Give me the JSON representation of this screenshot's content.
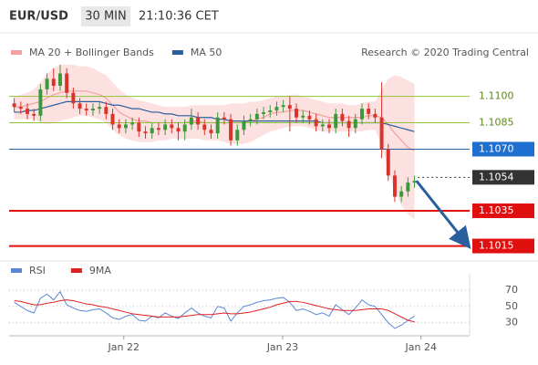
{
  "header": {
    "symbol": "EUR/USD",
    "interval": "30 MIN",
    "time": "21:10:36 CET"
  },
  "credit": "Research © 2020 Trading Central",
  "chart_data": [
    {
      "type": "candlestick",
      "legend": [
        {
          "name": "MA 20 + Bollinger Bands",
          "color": "#f4a0a0"
        },
        {
          "name": "MA 50",
          "color": "#2a5f9e"
        }
      ],
      "up_color": "#3a9a3a",
      "down_color": "#d9342b",
      "xlim": [
        0,
        69.9
      ],
      "xticks": [
        {
          "value": 17.2,
          "label": "Jan 22"
        },
        {
          "value": 41.4,
          "label": "Jan 23"
        },
        {
          "value": 62.5,
          "label": "Jan 24"
        }
      ],
      "ylim": [
        1.1007,
        1.1134
      ],
      "open": [
        1.1096,
        1.1094,
        1.1093,
        1.109,
        1.1089,
        1.1104,
        1.111,
        1.1106,
        1.1113,
        1.1102,
        1.1096,
        1.1093,
        1.1092,
        1.1093,
        1.1094,
        1.109,
        1.1084,
        1.1082,
        1.1084,
        1.1085,
        1.108,
        1.1079,
        1.1082,
        1.1081,
        1.1084,
        1.1082,
        1.108,
        1.1084,
        1.1088,
        1.1084,
        1.1081,
        1.1079,
        1.1088,
        1.1087,
        1.1075,
        1.1081,
        1.1086,
        1.1087,
        1.109,
        1.1091,
        1.1092,
        1.1094,
        1.1095,
        1.1093,
        1.1088,
        1.1089,
        1.1087,
        1.1083,
        1.1084,
        1.1082,
        1.109,
        1.1086,
        1.1082,
        1.1087,
        1.1093,
        1.109,
        1.1088,
        1.107,
        1.1055,
        1.1043,
        1.1046,
        1.1051
      ],
      "high": [
        1.1099,
        1.1097,
        1.1096,
        1.1093,
        1.1107,
        1.1113,
        1.1116,
        1.1118,
        1.1116,
        1.1105,
        1.1099,
        1.1096,
        1.1096,
        1.1097,
        1.1097,
        1.1093,
        1.1087,
        1.1087,
        1.1088,
        1.1088,
        1.1083,
        1.1085,
        1.1085,
        1.1087,
        1.1087,
        1.1085,
        1.1087,
        1.1093,
        1.1091,
        1.1087,
        1.1084,
        1.1091,
        1.1091,
        1.109,
        1.1084,
        1.1089,
        1.109,
        1.1093,
        1.1094,
        1.1095,
        1.1097,
        1.1098,
        1.11,
        1.1096,
        1.1092,
        1.1092,
        1.109,
        1.1087,
        1.1087,
        1.1093,
        1.1093,
        1.1089,
        1.109,
        1.1096,
        1.1096,
        1.1093,
        1.1108,
        1.1073,
        1.1058,
        1.1049,
        1.1054,
        1.1055
      ],
      "low": [
        1.1091,
        1.109,
        1.1087,
        1.1086,
        1.1086,
        1.1101,
        1.1103,
        1.1103,
        1.1099,
        1.1093,
        1.109,
        1.1089,
        1.1089,
        1.109,
        1.1087,
        1.1081,
        1.1079,
        1.1079,
        1.1081,
        1.1077,
        1.1076,
        1.1076,
        1.1078,
        1.1078,
        1.1079,
        1.1075,
        1.1075,
        1.1081,
        1.1081,
        1.1078,
        1.1076,
        1.1076,
        1.1084,
        1.1072,
        1.1072,
        1.1078,
        1.1083,
        1.1084,
        1.1087,
        1.1088,
        1.1089,
        1.1091,
        1.108,
        1.1085,
        1.1085,
        1.1084,
        1.108,
        1.108,
        1.1079,
        1.1079,
        1.1083,
        1.1077,
        1.1079,
        1.1084,
        1.1087,
        1.1085,
        1.1065,
        1.1052,
        1.104,
        1.104,
        1.1043,
        1.1048
      ],
      "close": [
        1.1094,
        1.1093,
        1.109,
        1.1089,
        1.1104,
        1.111,
        1.1106,
        1.1113,
        1.1102,
        1.1096,
        1.1093,
        1.1092,
        1.1093,
        1.1094,
        1.109,
        1.1084,
        1.1082,
        1.1084,
        1.1085,
        1.108,
        1.1079,
        1.1082,
        1.1081,
        1.1084,
        1.1082,
        1.108,
        1.1084,
        1.1088,
        1.1084,
        1.1081,
        1.1079,
        1.1088,
        1.1087,
        1.1075,
        1.1081,
        1.1086,
        1.1087,
        1.109,
        1.1091,
        1.1092,
        1.1094,
        1.1095,
        1.1093,
        1.1088,
        1.1089,
        1.1087,
        1.1083,
        1.1084,
        1.1082,
        1.109,
        1.1086,
        1.1082,
        1.1087,
        1.1093,
        1.109,
        1.1088,
        1.107,
        1.1055,
        1.1043,
        1.1046,
        1.1051,
        1.1052
      ],
      "bb_upper": [
        1.11,
        1.1101,
        1.1102,
        1.1104,
        1.1108,
        1.1113,
        1.1116,
        1.1118,
        1.1118,
        1.1118,
        1.1117,
        1.1117,
        1.1116,
        1.1114,
        1.1112,
        1.1108,
        1.1104,
        1.1101,
        1.1099,
        1.1098,
        1.1097,
        1.1096,
        1.1095,
        1.1094,
        1.1094,
        1.1094,
        1.1094,
        1.1095,
        1.1095,
        1.1095,
        1.1095,
        1.1095,
        1.1095,
        1.1096,
        1.1096,
        1.1096,
        1.1097,
        1.1097,
        1.1098,
        1.1099,
        1.11,
        1.11,
        1.1101,
        1.1101,
        1.11,
        1.1099,
        1.1098,
        1.1097,
        1.1096,
        1.1096,
        1.1096,
        1.1095,
        1.1095,
        1.1096,
        1.1097,
        1.1097,
        1.1104,
        1.111,
        1.1112,
        1.1111,
        1.1109,
        1.1107
      ],
      "bb_lower": [
        1.1087,
        1.1087,
        1.1087,
        1.1087,
        1.1085,
        1.1084,
        1.1085,
        1.1086,
        1.1087,
        1.1088,
        1.1089,
        1.1089,
        1.1088,
        1.1087,
        1.1085,
        1.1081,
        1.1078,
        1.1076,
        1.1075,
        1.1074,
        1.1074,
        1.1074,
        1.1075,
        1.1075,
        1.1076,
        1.1076,
        1.1076,
        1.1076,
        1.1076,
        1.1075,
        1.1075,
        1.1075,
        1.1074,
        1.1073,
        1.1073,
        1.1073,
        1.1074,
        1.1076,
        1.1078,
        1.108,
        1.1081,
        1.1082,
        1.1083,
        1.1083,
        1.1083,
        1.1082,
        1.1081,
        1.108,
        1.108,
        1.108,
        1.108,
        1.108,
        1.108,
        1.108,
        1.1081,
        1.1081,
        1.1072,
        1.1058,
        1.1046,
        1.1038,
        1.1033,
        1.103
      ],
      "ma20": [
        1.1094,
        1.1094,
        1.1095,
        1.1096,
        1.1097,
        1.1099,
        1.1101,
        1.1102,
        1.1103,
        1.1103,
        1.1103,
        1.1103,
        1.1102,
        1.1101,
        1.1099,
        1.1095,
        1.1091,
        1.1089,
        1.1087,
        1.1086,
        1.1086,
        1.1085,
        1.1085,
        1.1085,
        1.1085,
        1.1085,
        1.1085,
        1.1086,
        1.1086,
        1.1085,
        1.1085,
        1.1085,
        1.1085,
        1.1085,
        1.1085,
        1.1085,
        1.1086,
        1.1087,
        1.1088,
        1.109,
        1.1091,
        1.1091,
        1.1092,
        1.1092,
        1.1092,
        1.1091,
        1.109,
        1.1089,
        1.1088,
        1.1088,
        1.1088,
        1.1088,
        1.1088,
        1.1088,
        1.1089,
        1.1089,
        1.1088,
        1.1084,
        1.1079,
        1.1075,
        1.1071,
        1.1069
      ],
      "ma50": [
        1.1091,
        1.1091,
        1.1092,
        1.1092,
        1.1093,
        1.1094,
        1.1095,
        1.1096,
        1.1097,
        1.1097,
        1.1097,
        1.1097,
        1.1097,
        1.1097,
        1.1096,
        1.1095,
        1.1095,
        1.1094,
        1.1093,
        1.1093,
        1.1092,
        1.1091,
        1.1091,
        1.109,
        1.109,
        1.1089,
        1.1089,
        1.1089,
        1.1088,
        1.1088,
        1.1088,
        1.1087,
        1.1087,
        1.1086,
        1.1086,
        1.1086,
        1.1086,
        1.1086,
        1.1086,
        1.1086,
        1.1086,
        1.1086,
        1.1086,
        1.1086,
        1.1086,
        1.1086,
        1.1086,
        1.1085,
        1.1085,
        1.1085,
        1.1085,
        1.1085,
        1.1085,
        1.1085,
        1.1085,
        1.1085,
        1.1085,
        1.1084,
        1.1083,
        1.1082,
        1.1081,
        1.108
      ],
      "levels": [
        {
          "value": 1.11,
          "label": "1.1100",
          "color": "#8cc63f",
          "text_color": "#5b8a1a",
          "box": false,
          "width": 1,
          "dashed": false
        },
        {
          "value": 1.1085,
          "label": "1.1085",
          "color": "#8cc63f",
          "text_color": "#5b8a1a",
          "box": false,
          "width": 1,
          "dashed": false
        },
        {
          "value": 1.107,
          "label": "1.1070",
          "color": "#2a5f9e",
          "text_color": "#ffffff",
          "box": true,
          "box_color": "#1f6fd1",
          "width": 1,
          "dashed": false
        },
        {
          "value": 1.1054,
          "label": "1.1054",
          "color": "#333333",
          "text_color": "#ffffff",
          "box": true,
          "box_color": "#333333",
          "width": 1,
          "dashed": true
        },
        {
          "value": 1.1035,
          "label": "1.1035",
          "color": "#e01010",
          "text_color": "#ffffff",
          "box": true,
          "box_color": "#e01010",
          "width": 2,
          "dashed": false
        },
        {
          "value": 1.1015,
          "label": "1.1015",
          "color": "#e01010",
          "text_color": "#ffffff",
          "box": true,
          "box_color": "#e01010",
          "width": 2,
          "dashed": false
        }
      ]
    },
    {
      "type": "line",
      "xlim": [
        0,
        69.9
      ],
      "ylim": [
        14,
        90
      ],
      "yticks": [
        30,
        50,
        70
      ],
      "grid": true,
      "series": [
        {
          "name": "RSI",
          "color": "#5b86d6",
          "values": [
            55,
            50,
            45,
            42,
            60,
            65,
            58,
            68,
            52,
            48,
            45,
            44,
            46,
            47,
            42,
            36,
            34,
            38,
            40,
            33,
            32,
            38,
            36,
            42,
            38,
            35,
            42,
            48,
            42,
            38,
            36,
            50,
            48,
            32,
            42,
            50,
            52,
            55,
            57,
            58,
            60,
            61,
            55,
            45,
            47,
            44,
            40,
            42,
            38,
            52,
            46,
            40,
            48,
            58,
            52,
            50,
            40,
            30,
            23,
            27,
            33,
            38
          ]
        },
        {
          "name": "9MA",
          "color": "#e02020",
          "values": [
            57,
            56,
            54,
            52,
            52,
            54,
            55,
            57,
            58,
            57,
            55,
            53,
            52,
            50,
            49,
            47,
            45,
            43,
            41,
            40,
            39,
            38,
            37,
            37,
            37,
            37,
            38,
            39,
            40,
            40,
            40,
            41,
            42,
            41,
            41,
            42,
            43,
            45,
            47,
            49,
            52,
            54,
            56,
            56,
            55,
            53,
            51,
            49,
            47,
            46,
            45,
            45,
            45,
            46,
            47,
            47,
            47,
            45,
            41,
            37,
            33,
            31
          ]
        }
      ]
    }
  ]
}
